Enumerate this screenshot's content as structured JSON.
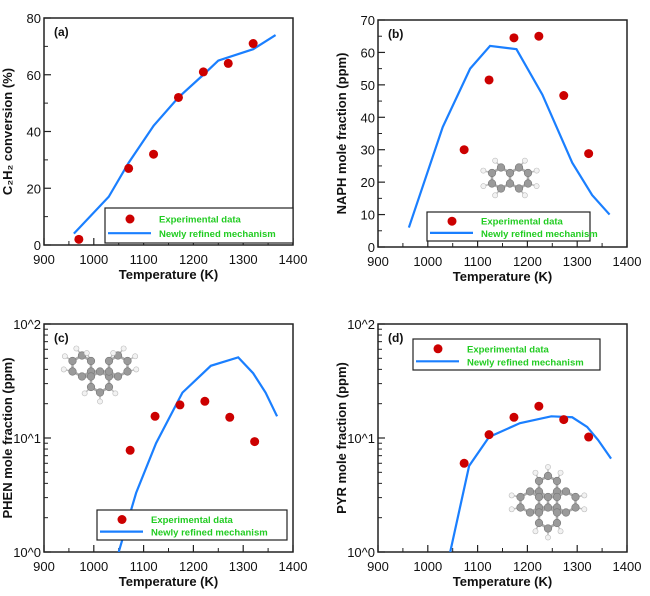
{
  "colors": {
    "experimental": "#cc0000",
    "model": "#1a7fff",
    "legend_text": "#22cc22",
    "atom_c": "#9a9a9a",
    "atom_h": "#f2f2f2"
  },
  "chart_data": [
    {
      "type": "scatter+line",
      "panel_label": "(a)",
      "xlabel": "Temperature (K)",
      "ylabel": "C₂H₂ conversion (%)",
      "xlim": [
        900,
        1400
      ],
      "ylim": [
        0,
        80
      ],
      "yscale": "linear",
      "xticks": [
        900,
        1000,
        1100,
        1200,
        1300,
        1400
      ],
      "yticks": [
        0,
        20,
        40,
        60,
        80
      ],
      "ytick_labels": [
        "0",
        "20",
        "40",
        "60",
        "80"
      ],
      "legend_position": "bottom-right",
      "series": [
        {
          "name": "Experimental data",
          "kind": "scatter",
          "x": [
            970,
            1070,
            1120,
            1170,
            1220,
            1270,
            1320
          ],
          "y": [
            2,
            27,
            32,
            52,
            61,
            64,
            71
          ]
        },
        {
          "name": "Newly refined mechanism",
          "kind": "line",
          "x": [
            960,
            1030,
            1070,
            1120,
            1170,
            1220,
            1250,
            1320,
            1365
          ],
          "y": [
            4,
            17,
            29,
            42,
            52,
            60,
            65,
            69,
            74
          ]
        }
      ]
    },
    {
      "type": "scatter+line",
      "panel_label": "(b)",
      "molecule": "naphthalene",
      "xlabel": "Temperature (K)",
      "ylabel": "NAPH mole fraction (ppm)",
      "xlim": [
        900,
        1400
      ],
      "ylim": [
        0,
        70
      ],
      "yscale": "linear",
      "xticks": [
        900,
        1000,
        1100,
        1200,
        1300,
        1400
      ],
      "yticks": [
        0,
        10,
        20,
        30,
        40,
        50,
        60,
        70
      ],
      "ytick_labels": [
        "0",
        "10",
        "20",
        "30",
        "40",
        "50",
        "60",
        "70"
      ],
      "legend_position": "bottom",
      "series": [
        {
          "name": "Experimental data",
          "kind": "scatter",
          "x": [
            1073,
            1123,
            1173,
            1223,
            1273,
            1323
          ],
          "y": [
            30,
            51.5,
            64.5,
            65,
            46.7,
            28.8
          ]
        },
        {
          "name": "Newly refined mechanism",
          "kind": "line",
          "x": [
            962,
            1030,
            1085,
            1125,
            1178,
            1230,
            1290,
            1330,
            1365
          ],
          "y": [
            6,
            37,
            55,
            62,
            61,
            47,
            26,
            16,
            10
          ]
        }
      ]
    },
    {
      "type": "scatter+line",
      "panel_label": "(c)",
      "molecule": "phenanthrene",
      "xlabel": "Temperature (K)",
      "ylabel": "PHEN mole fraction (ppm)",
      "xlim": [
        900,
        1400
      ],
      "ylim": [
        1,
        100
      ],
      "yscale": "log",
      "xticks": [
        900,
        1000,
        1100,
        1200,
        1300,
        1400
      ],
      "yticks": [
        1,
        10,
        100
      ],
      "ytick_labels": [
        "10^0",
        "10^1",
        "10^2"
      ],
      "legend_position": "bottom-right",
      "series": [
        {
          "name": "Experimental data",
          "kind": "scatter",
          "x": [
            1073,
            1123,
            1173,
            1223,
            1273,
            1323
          ],
          "y": [
            7.8,
            15.5,
            19.5,
            21,
            15.2,
            9.3
          ]
        },
        {
          "name": "Newly refined mechanism",
          "kind": "line",
          "x": [
            1050,
            1085,
            1125,
            1178,
            1235,
            1290,
            1320,
            1345,
            1368
          ],
          "y": [
            1,
            3.3,
            9,
            25,
            43,
            51,
            37,
            25,
            15.5
          ]
        }
      ]
    },
    {
      "type": "scatter+line",
      "panel_label": "(d)",
      "molecule": "pyrene",
      "xlabel": "Temperature (K)",
      "ylabel": "PYR mole fraction (ppm)",
      "xlim": [
        900,
        1400
      ],
      "ylim": [
        1,
        100
      ],
      "yscale": "log",
      "xticks": [
        900,
        1000,
        1100,
        1200,
        1300,
        1400
      ],
      "yticks": [
        1,
        10,
        100
      ],
      "ytick_labels": [
        "10^0",
        "10^1",
        "10^2"
      ],
      "legend_position": "top",
      "series": [
        {
          "name": "Experimental data",
          "kind": "scatter",
          "x": [
            1073,
            1123,
            1173,
            1223,
            1273,
            1323
          ],
          "y": [
            6,
            10.7,
            15.2,
            19,
            14.5,
            10.2
          ]
        },
        {
          "name": "Newly refined mechanism",
          "kind": "line",
          "x": [
            1045,
            1083,
            1123,
            1185,
            1248,
            1290,
            1320,
            1342,
            1368
          ],
          "y": [
            1,
            5.7,
            10.2,
            13.5,
            15.5,
            15.2,
            12.5,
            9.6,
            6.6
          ]
        }
      ]
    }
  ]
}
